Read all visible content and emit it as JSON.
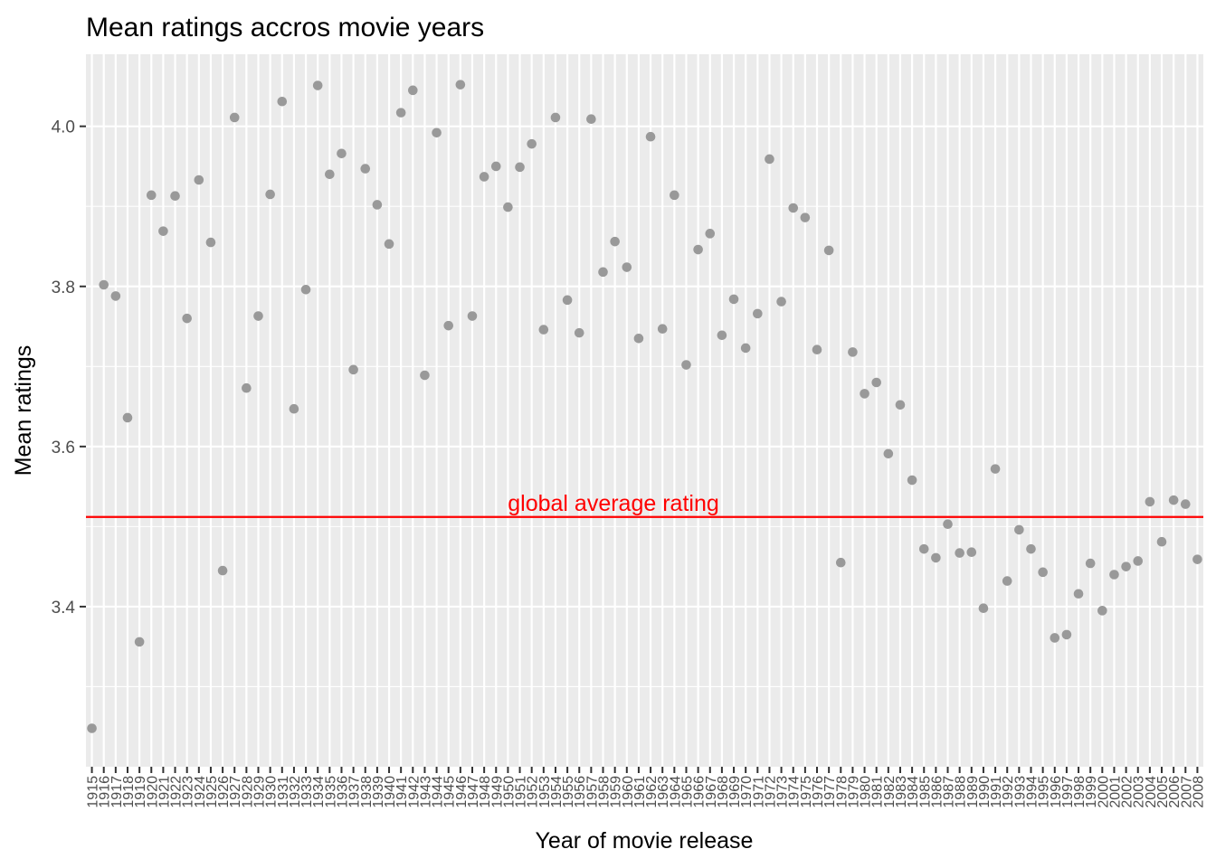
{
  "chart_data": {
    "type": "scatter",
    "title": "Mean ratings accros movie years",
    "xlabel": "Year of movie release",
    "ylabel": "Mean ratings",
    "ylim": [
      3.2,
      4.09
    ],
    "yticks": [
      "3.4",
      "3.6",
      "3.8",
      "4.0"
    ],
    "grid": true,
    "x": [
      1915,
      1916,
      1917,
      1918,
      1919,
      1920,
      1921,
      1922,
      1923,
      1924,
      1925,
      1926,
      1927,
      1928,
      1929,
      1930,
      1931,
      1932,
      1933,
      1934,
      1935,
      1936,
      1937,
      1938,
      1939,
      1940,
      1941,
      1942,
      1943,
      1944,
      1945,
      1946,
      1947,
      1948,
      1949,
      1950,
      1951,
      1952,
      1953,
      1954,
      1955,
      1956,
      1957,
      1958,
      1959,
      1960,
      1961,
      1962,
      1963,
      1964,
      1965,
      1966,
      1967,
      1968,
      1969,
      1970,
      1971,
      1972,
      1973,
      1974,
      1975,
      1976,
      1977,
      1978,
      1979,
      1980,
      1981,
      1982,
      1983,
      1984,
      1985,
      1986,
      1987,
      1988,
      1989,
      1990,
      1991,
      1992,
      1993,
      1994,
      1995,
      1996,
      1997,
      1998,
      1999,
      2000,
      2001,
      2002,
      2003,
      2004,
      2005,
      2006,
      2007,
      2008
    ],
    "values": [
      3.248,
      3.802,
      3.788,
      3.636,
      3.356,
      3.914,
      3.869,
      3.913,
      3.76,
      3.933,
      3.855,
      3.445,
      4.011,
      3.673,
      3.763,
      3.915,
      4.031,
      3.647,
      3.796,
      4.051,
      3.94,
      3.966,
      3.696,
      3.947,
      3.902,
      3.853,
      4.017,
      4.045,
      3.689,
      3.992,
      3.751,
      4.052,
      3.763,
      3.937,
      3.95,
      3.899,
      3.949,
      3.978,
      3.746,
      4.011,
      3.783,
      3.742,
      4.009,
      3.818,
      3.856,
      3.824,
      3.735,
      3.987,
      3.747,
      3.914,
      3.702,
      3.846,
      3.866,
      3.739,
      3.784,
      3.723,
      3.766,
      3.959,
      3.781,
      3.898,
      3.886,
      3.721,
      3.845,
      3.455,
      3.718,
      3.666,
      3.68,
      3.591,
      3.652,
      3.558,
      3.472,
      3.461,
      3.503,
      3.467,
      3.468,
      3.398,
      3.572,
      3.432,
      3.496,
      3.472,
      3.443,
      3.361,
      3.365,
      3.416,
      3.454,
      3.395,
      3.44,
      3.45,
      3.457,
      3.531,
      3.481,
      3.533,
      3.528,
      3.459
    ],
    "point_color": "#999999",
    "hline": {
      "value": 3.512,
      "color": "#ff0000",
      "label": "global average rating"
    },
    "panel_color": "#ebebeb",
    "grid_color": "#ffffff"
  }
}
